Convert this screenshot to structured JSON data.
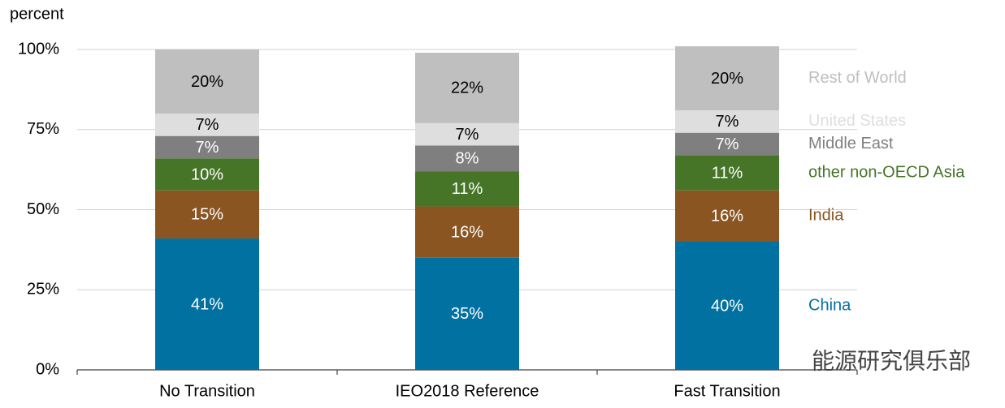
{
  "chart_data": {
    "type": "stacked_bar",
    "y_label": "percent",
    "categories": [
      "No Transition",
      "IEO2018 Reference",
      "Fast Transition"
    ],
    "series": [
      {
        "name": "China",
        "color": "#0071a1",
        "values": [
          41,
          35,
          40
        ],
        "value_labels": [
          "41%",
          "35%",
          "40%"
        ]
      },
      {
        "name": "India",
        "color": "#8b5521",
        "values": [
          15,
          16,
          16
        ],
        "value_labels": [
          "15%",
          "16%",
          "16%"
        ]
      },
      {
        "name": "other non-OECD Asia",
        "color": "#467528",
        "values": [
          10,
          11,
          11
        ],
        "value_labels": [
          "10%",
          "11%",
          "11%"
        ]
      },
      {
        "name": "Middle East",
        "color": "#7f7f7f",
        "values": [
          7,
          8,
          7
        ],
        "value_labels": [
          "7%",
          "8%",
          "7%"
        ]
      },
      {
        "name": "United States",
        "color": "#dedede",
        "values": [
          7,
          7,
          7
        ],
        "value_labels": [
          "7%",
          "7%",
          "7%"
        ]
      },
      {
        "name": "Rest of World",
        "color": "#bfbfbf",
        "values": [
          20,
          22,
          20
        ],
        "value_labels": [
          "20%",
          "22%",
          "20%"
        ]
      }
    ],
    "ylim": [
      0,
      100
    ],
    "yticks": [
      {
        "value": 0,
        "label": "0%"
      },
      {
        "value": 25,
        "label": "25%"
      },
      {
        "value": 50,
        "label": "50%"
      },
      {
        "value": 75,
        "label": "75%"
      },
      {
        "value": 100,
        "label": "100%"
      }
    ],
    "grid": true,
    "legend": "right",
    "watermark": "能源研究俱乐部"
  }
}
